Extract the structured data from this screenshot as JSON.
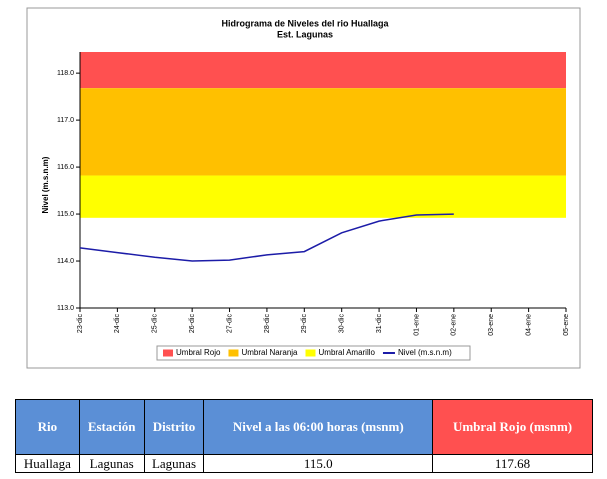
{
  "chart_data": {
    "type": "line",
    "title": "Hidrograma de Niveles del rio Huallaga",
    "subtitle": "Est. Lagunas",
    "y_label": "Nivel (m.s.n.m)",
    "categories": [
      "23-dic",
      "24-dic",
      "25-dic",
      "26-dic",
      "27-dic",
      "28-dic",
      "29-dic",
      "30-dic",
      "31-dic",
      "01-ene",
      "02-ene",
      "03-ene",
      "04-ene",
      "05-ene"
    ],
    "series": [
      {
        "name": "Nivel (m.s.n.m)",
        "color": "#1c1ca8",
        "values": [
          114.28,
          114.18,
          114.08,
          114.0,
          114.02,
          114.13,
          114.2,
          114.6,
          114.85,
          114.98,
          115.0,
          null,
          null,
          null
        ]
      }
    ],
    "thresholds": [
      {
        "name": "Umbral Rojo",
        "color": "#ff5050",
        "value": 117.68
      },
      {
        "name": "Umbral Naranja",
        "color": "#ffc000",
        "value": 115.82
      },
      {
        "name": "Umbral Amarillo",
        "color": "#ffff00",
        "value": 114.92
      }
    ],
    "ylim": [
      113,
      118.45
    ],
    "yticks": [
      {
        "value": 113,
        "label": "113.0"
      },
      {
        "value": 114,
        "label": "114.0"
      },
      {
        "value": 115,
        "label": "115.0"
      },
      {
        "value": 116,
        "label": "116.0"
      },
      {
        "value": 117,
        "label": "117.0"
      },
      {
        "value": 118,
        "label": "118.0"
      }
    ],
    "legend": "bottom"
  },
  "table": {
    "columns": [
      "Rio",
      "Estación",
      "Distrito",
      "Nivel a las 06:00 horas (msnm)",
      "Umbral Rojo (msnm)"
    ],
    "rows": [
      [
        "Huallaga",
        "Lagunas",
        "Lagunas",
        "115.0",
        "117.68"
      ]
    ]
  }
}
